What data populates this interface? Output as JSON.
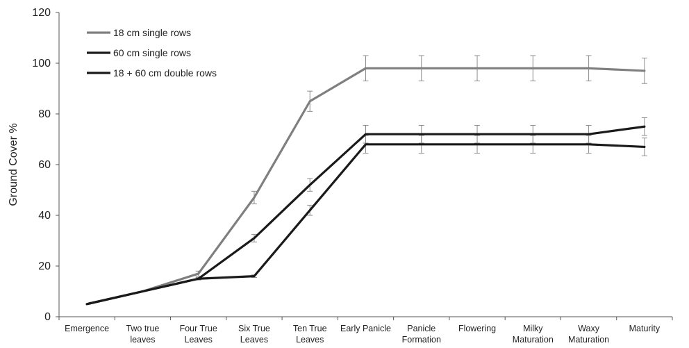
{
  "chart_data": {
    "type": "line",
    "title": "",
    "xlabel": "",
    "ylabel": "Ground Cover %",
    "ylim": [
      0,
      120
    ],
    "yticks": [
      "0",
      "20",
      "40",
      "60",
      "80",
      "100",
      "120"
    ],
    "grid": false,
    "legend": "top-left",
    "categories": [
      [
        "Emergence"
      ],
      [
        "Two true",
        "leaves"
      ],
      [
        "Four True",
        "Leaves"
      ],
      [
        "Six True",
        "Leaves"
      ],
      [
        "Ten True",
        "Leaves"
      ],
      [
        "Early Panicle"
      ],
      [
        "Panicle",
        "Formation"
      ],
      [
        "Flowering"
      ],
      [
        "Milky",
        "Maturation"
      ],
      [
        "Waxy",
        "Maturation"
      ],
      [
        "Maturity"
      ]
    ],
    "series": [
      {
        "name": "18 cm single rows",
        "color": "#7f7f7f",
        "values": [
          5,
          10,
          17,
          47,
          85,
          98,
          98,
          98,
          98,
          98,
          97
        ],
        "error": [
          0,
          0,
          1,
          2.5,
          4,
          5,
          5,
          5,
          5,
          5,
          5
        ]
      },
      {
        "name": "60 cm single rows",
        "color": "#1a1a1a",
        "values": [
          5,
          10,
          15,
          31,
          52,
          72,
          72,
          72,
          72,
          72,
          75
        ],
        "error": [
          0,
          0,
          0.5,
          1.5,
          2.5,
          3.5,
          3.5,
          3.5,
          3.5,
          3.5,
          3.5
        ]
      },
      {
        "name": "18 + 60 cm double rows",
        "color": "#1a1a1a",
        "values": [
          5,
          10,
          15,
          16,
          42,
          68,
          68,
          68,
          68,
          68,
          67
        ],
        "error": [
          0,
          0,
          0.5,
          0.5,
          2,
          3.5,
          3.5,
          3.5,
          3.5,
          3.5,
          3.5
        ]
      }
    ]
  }
}
